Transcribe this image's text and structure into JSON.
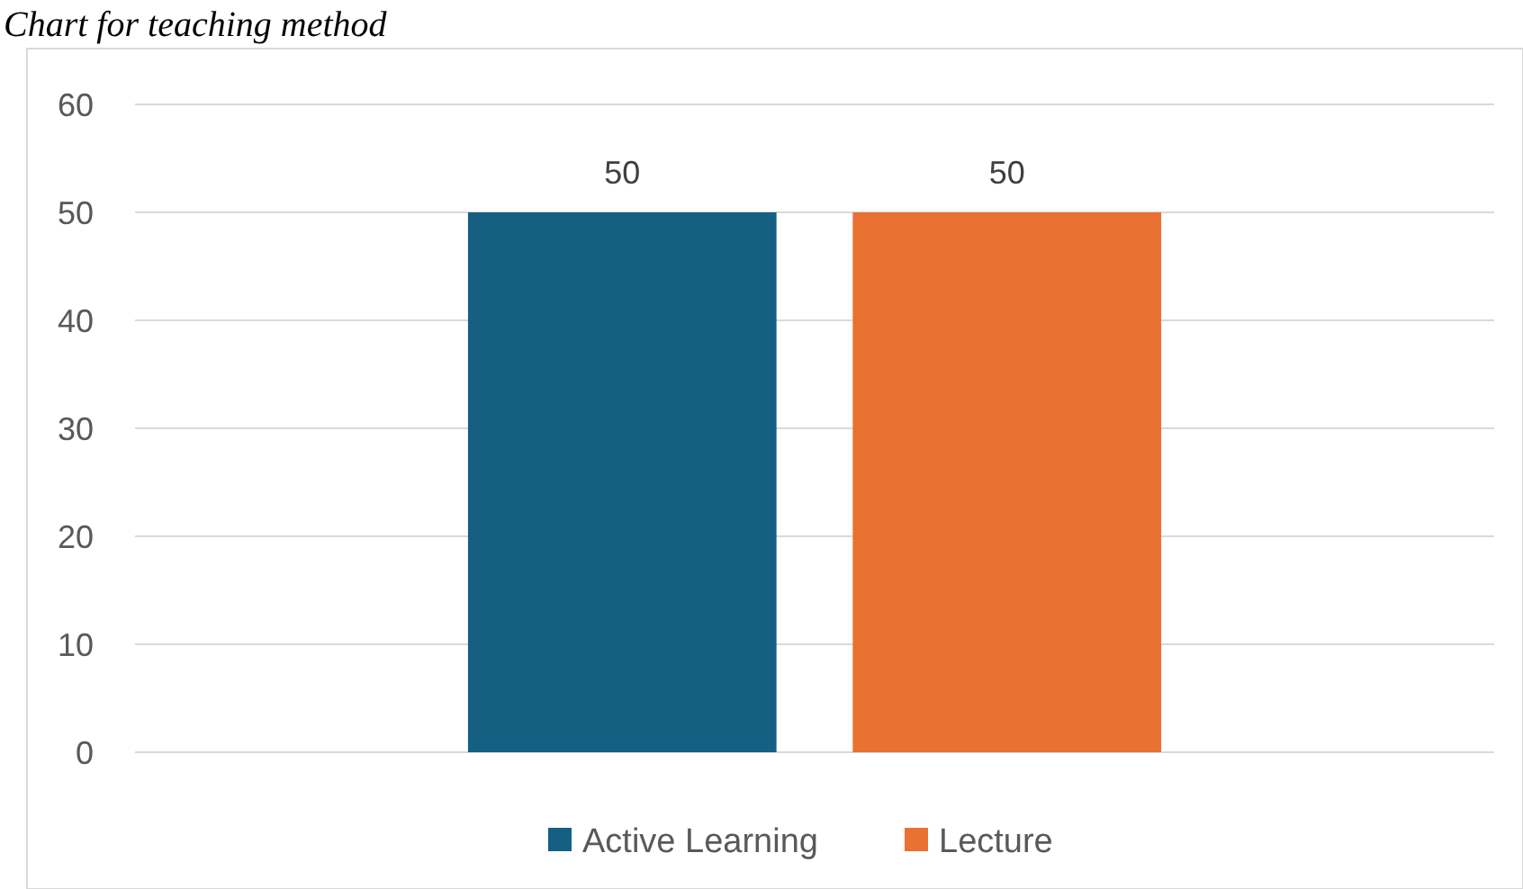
{
  "chart_data": {
    "type": "bar",
    "title": "Chart for teaching method",
    "categories": [
      null
    ],
    "series": [
      {
        "name": "Active Learning",
        "color": "#156082",
        "values": [
          50
        ]
      },
      {
        "name": "Lecture",
        "color": "#e97132",
        "values": [
          50
        ]
      }
    ],
    "ylim": [
      0,
      60
    ],
    "yticks": [
      0,
      10,
      20,
      30,
      40,
      50,
      60
    ],
    "grid": "y",
    "legend": "bottom",
    "data_labels": true
  }
}
